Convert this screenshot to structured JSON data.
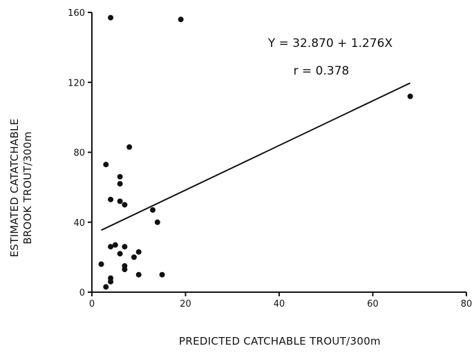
{
  "chart_data": {
    "type": "scatter",
    "title": "",
    "xlabel": "PREDICTED  CATCHABLE  TROUT/300m",
    "ylabel_lines": [
      "ESTIMATED  CATATCHABLE",
      "BROOK  TROUT/300m"
    ],
    "xlim": [
      0,
      80
    ],
    "ylim": [
      0,
      160
    ],
    "xticks": [
      0,
      20,
      40,
      60,
      80
    ],
    "yticks": [
      0,
      40,
      80,
      120,
      160
    ],
    "grid": false,
    "annotations": {
      "equation": "Y = 32.870 + 1.276X",
      "r": "r = 0.378"
    },
    "regression": {
      "intercept": 32.87,
      "slope": 1.276,
      "x_range": [
        2,
        68
      ]
    },
    "points": [
      {
        "x": 4,
        "y": 157
      },
      {
        "x": 19,
        "y": 156
      },
      {
        "x": 68,
        "y": 112
      },
      {
        "x": 8,
        "y": 83
      },
      {
        "x": 3,
        "y": 73
      },
      {
        "x": 6,
        "y": 66
      },
      {
        "x": 6,
        "y": 62
      },
      {
        "x": 4,
        "y": 53
      },
      {
        "x": 6,
        "y": 52
      },
      {
        "x": 7,
        "y": 50
      },
      {
        "x": 13,
        "y": 47
      },
      {
        "x": 14,
        "y": 40
      },
      {
        "x": 5,
        "y": 27
      },
      {
        "x": 4,
        "y": 26
      },
      {
        "x": 7,
        "y": 26
      },
      {
        "x": 10,
        "y": 23
      },
      {
        "x": 6,
        "y": 22
      },
      {
        "x": 9,
        "y": 20
      },
      {
        "x": 2,
        "y": 16
      },
      {
        "x": 7,
        "y": 15
      },
      {
        "x": 7,
        "y": 13
      },
      {
        "x": 10,
        "y": 10
      },
      {
        "x": 15,
        "y": 10
      },
      {
        "x": 4,
        "y": 8
      },
      {
        "x": 4,
        "y": 6
      },
      {
        "x": 3,
        "y": 3
      }
    ]
  }
}
